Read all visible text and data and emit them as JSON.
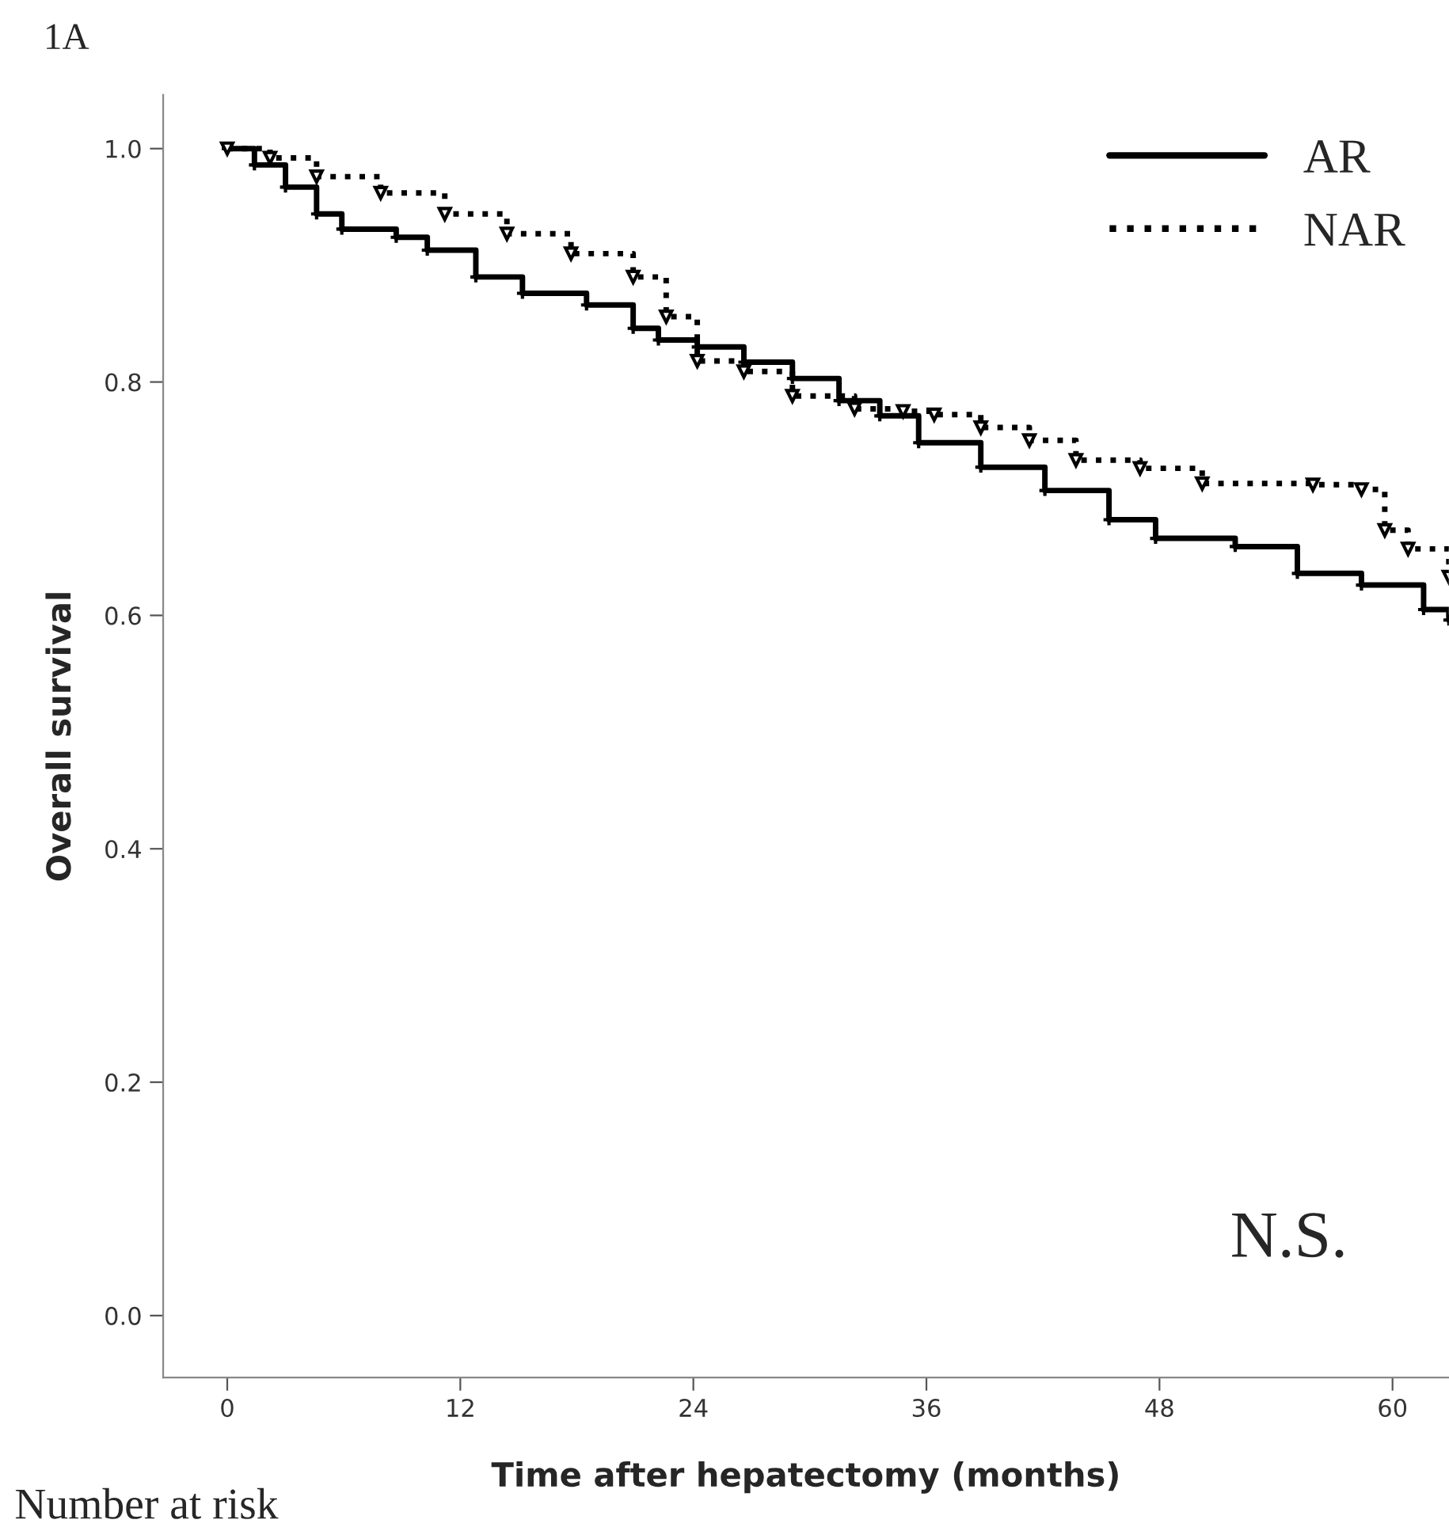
{
  "chart_data": {
    "type": "step",
    "xlabel": "Time after hepatectomy (months)",
    "ylabel": "Overall survival",
    "annotations": [
      "1A",
      "N.S.",
      "Number at risk"
    ],
    "xlim": [
      -3.3,
      62.9
    ],
    "ylim": [
      -0.053,
      1.046
    ],
    "xticks": [
      0,
      12,
      24,
      36,
      48,
      60
    ],
    "yticks": [
      {
        "value": 0,
        "label": "0.0"
      },
      {
        "value": 0.2,
        "label": "0.2"
      },
      {
        "value": 0.4,
        "label": "0.4"
      },
      {
        "value": 0.6,
        "label": "0.6"
      },
      {
        "value": 0.8,
        "label": "0.8"
      },
      {
        "value": 1,
        "label": "1.0"
      }
    ],
    "legend": "top right",
    "grid": false,
    "series": [
      {
        "name": "AR",
        "color": "#000000",
        "line_style": "solid",
        "marker": "cross",
        "x": [
          0,
          1.4,
          3,
          4.6,
          5.9,
          8.7,
          10.3,
          12.8,
          15.2,
          18.5,
          20.9,
          22.2,
          24.2,
          26.6,
          29.1,
          31.5,
          33.6,
          35.6,
          38.8,
          42.1,
          45.4,
          47.8,
          51.9,
          55.1,
          58.4,
          61.6,
          62.9
        ],
        "values": [
          1.0,
          0.986,
          0.967,
          0.944,
          0.931,
          0.924,
          0.913,
          0.89,
          0.876,
          0.866,
          0.846,
          0.836,
          0.83,
          0.817,
          0.803,
          0.784,
          0.771,
          0.748,
          0.727,
          0.707,
          0.682,
          0.666,
          0.659,
          0.636,
          0.626,
          0.605,
          0.596
        ]
      },
      {
        "name": "NAR",
        "color": "#000000",
        "line_style": "dotted",
        "marker": "triangle",
        "x": [
          0,
          2.2,
          4.6,
          7.9,
          11.2,
          14.4,
          17.7,
          20.9,
          22.6,
          24.2,
          26.6,
          29.1,
          32.3,
          34.8,
          36.4,
          38.8,
          41.3,
          43.7,
          47.0,
          50.2,
          55.9,
          58.4,
          59.6,
          60.8,
          62.9
        ],
        "values": [
          1.0,
          0.992,
          0.976,
          0.962,
          0.944,
          0.927,
          0.91,
          0.89,
          0.856,
          0.818,
          0.809,
          0.788,
          0.777,
          0.775,
          0.772,
          0.761,
          0.75,
          0.733,
          0.726,
          0.713,
          0.712,
          0.708,
          0.673,
          0.657,
          0.633
        ]
      }
    ]
  }
}
